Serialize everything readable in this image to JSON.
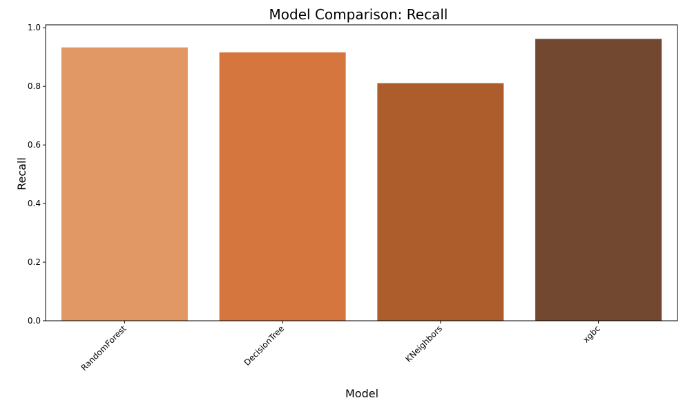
{
  "chart_data": {
    "type": "bar",
    "title": "Model Comparison: Recall",
    "xlabel": "Model",
    "ylabel": "Recall",
    "categories": [
      "RandomForest",
      "DecisionTree",
      "KNeighbors",
      "xgbc"
    ],
    "values": [
      0.933,
      0.916,
      0.811,
      0.962
    ],
    "colors": [
      "#e19865",
      "#d4763d",
      "#ad5c2c",
      "#724830"
    ],
    "ylim": [
      0,
      1.01
    ],
    "yticks": [
      0.0,
      0.2,
      0.4,
      0.6,
      0.8,
      1.0
    ],
    "ytick_labels": [
      "0.0",
      "0.2",
      "0.4",
      "0.6",
      "0.8",
      "1.0"
    ],
    "grid": false,
    "legend": "none"
  }
}
